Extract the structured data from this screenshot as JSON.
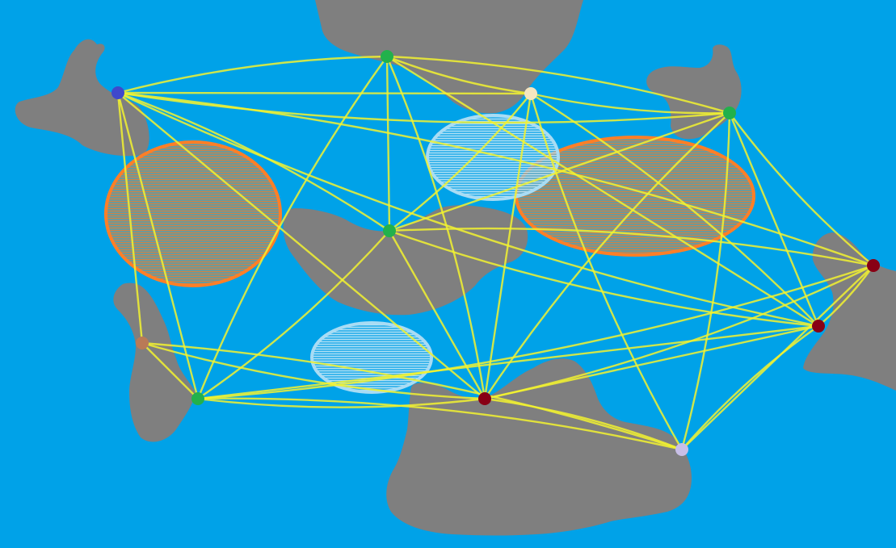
{
  "colors": {
    "water": "#00a2e8",
    "land": "#7f7f7f",
    "route": "#f2f230",
    "storm_fill": "#f07a2a",
    "storm_edge": "#ff7f27",
    "calm_fill": "#b4dcf2",
    "calm_edge": "#a8dcf4"
  },
  "ports": [
    {
      "id": "p1",
      "color": "#3f48cc"
    },
    {
      "id": "p2",
      "color": "#22b14c"
    },
    {
      "id": "p3",
      "color": "#f5e6c0"
    },
    {
      "id": "p4",
      "color": "#22b14c"
    },
    {
      "id": "p5",
      "color": "#22b14c"
    },
    {
      "id": "p6",
      "color": "#b97a57"
    },
    {
      "id": "p7",
      "color": "#22b14c"
    },
    {
      "id": "p8",
      "color": "#880015"
    },
    {
      "id": "p9",
      "color": "#c8bfe7"
    },
    {
      "id": "p10",
      "color": "#880015"
    },
    {
      "id": "p11",
      "color": "#880015"
    }
  ],
  "zones": [
    {
      "id": "storm-west",
      "kind": "storm"
    },
    {
      "id": "storm-east",
      "kind": "storm"
    },
    {
      "id": "calm-north",
      "kind": "calm"
    },
    {
      "id": "calm-south",
      "kind": "calm"
    }
  ],
  "routes": [
    [
      "p1",
      "p2"
    ],
    [
      "p1",
      "p3"
    ],
    [
      "p1",
      "p4"
    ],
    [
      "p1",
      "p5"
    ],
    [
      "p1",
      "p7"
    ],
    [
      "p1",
      "p10"
    ],
    [
      "p1",
      "p11"
    ],
    [
      "p1",
      "p8"
    ],
    [
      "p2",
      "p3"
    ],
    [
      "p2",
      "p4"
    ],
    [
      "p2",
      "p5"
    ],
    [
      "p2",
      "p7"
    ],
    [
      "p2",
      "p8"
    ],
    [
      "p2",
      "p10"
    ],
    [
      "p3",
      "p4"
    ],
    [
      "p3",
      "p5"
    ],
    [
      "p3",
      "p8"
    ],
    [
      "p3",
      "p9"
    ],
    [
      "p3",
      "p10"
    ],
    [
      "p4",
      "p5"
    ],
    [
      "p4",
      "p8"
    ],
    [
      "p4",
      "p9"
    ],
    [
      "p4",
      "p10"
    ],
    [
      "p4",
      "p11"
    ],
    [
      "p5",
      "p7"
    ],
    [
      "p5",
      "p8"
    ],
    [
      "p5",
      "p10"
    ],
    [
      "p5",
      "p11"
    ],
    [
      "p6",
      "p7"
    ],
    [
      "p6",
      "p8"
    ],
    [
      "p6",
      "p9"
    ],
    [
      "p6",
      "p1"
    ],
    [
      "p7",
      "p8"
    ],
    [
      "p7",
      "p9"
    ],
    [
      "p7",
      "p10"
    ],
    [
      "p7",
      "p11"
    ],
    [
      "p8",
      "p9"
    ],
    [
      "p8",
      "p10"
    ],
    [
      "p8",
      "p11"
    ],
    [
      "p9",
      "p10"
    ],
    [
      "p9",
      "p11"
    ],
    [
      "p10",
      "p11"
    ]
  ]
}
